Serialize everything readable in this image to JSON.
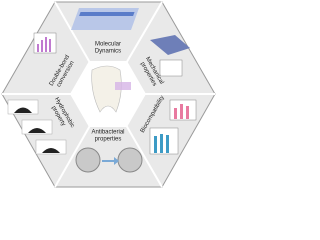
{
  "sections": [
    {
      "lines": [
        "Molecular",
        "Dynamics"
      ]
    },
    {
      "lines": [
        "Mechanical",
        "properties"
      ]
    },
    {
      "lines": [
        "Biocompatibility"
      ]
    },
    {
      "lines": [
        "Antibacterial",
        "properties"
      ]
    },
    {
      "lines": [
        "Hydrophobic",
        "property"
      ]
    },
    {
      "lines": [
        "Double-bond",
        "conversion"
      ]
    }
  ]
}
